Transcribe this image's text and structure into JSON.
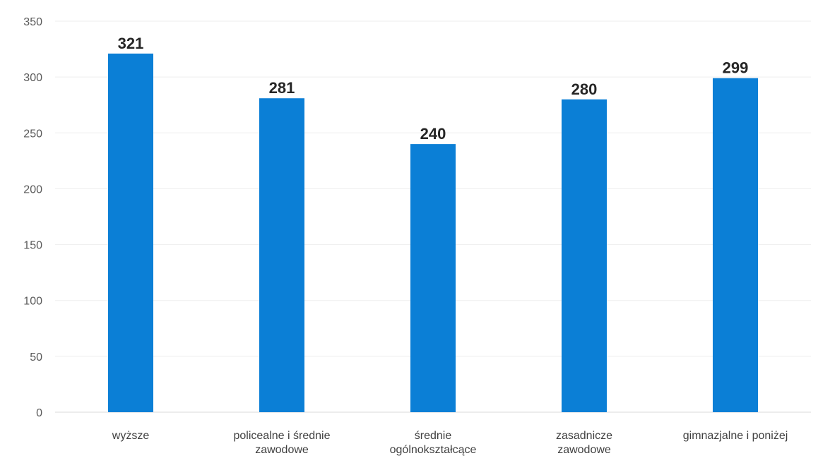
{
  "chart_data": {
    "type": "bar",
    "categories": [
      [
        "wyższe"
      ],
      [
        "policealne i średnie",
        "zawodowe"
      ],
      [
        "średnie",
        "ogólnokształcące"
      ],
      [
        "zasadnicze",
        "zawodowe"
      ],
      [
        "gimnazjalne i poniżej"
      ]
    ],
    "values": [
      321,
      281,
      240,
      280,
      299
    ],
    "data_labels": [
      "321",
      "281",
      "240",
      "280",
      "299"
    ],
    "ylim": [
      0,
      350
    ],
    "y_ticks": [
      0,
      50,
      100,
      150,
      200,
      250,
      300,
      350
    ],
    "grid": true,
    "legend": "none",
    "bar_color": "#0b7fd6"
  }
}
